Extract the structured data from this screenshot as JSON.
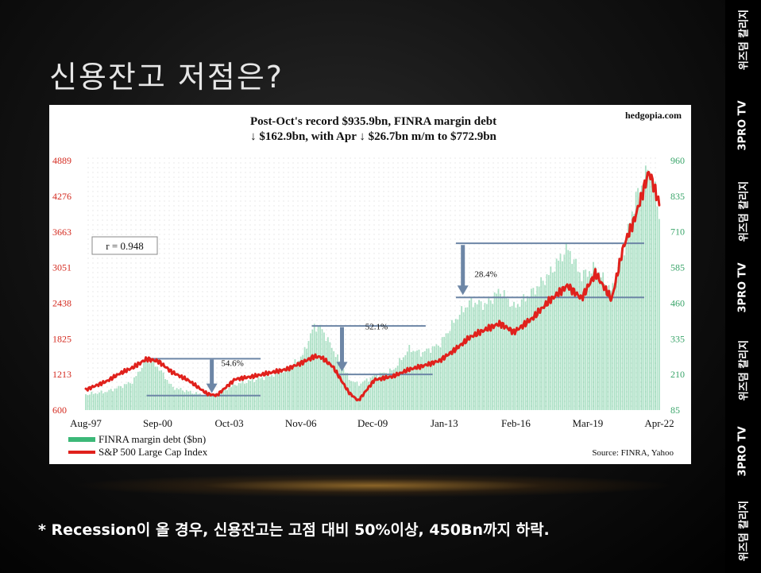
{
  "slide": {
    "title": "신용잔고 저점은?",
    "footnote": "* Recession이 올 경우, 신용잔고는 고점 대비 50%이상, 450Bn까지 하락."
  },
  "watermarks": [
    "위즈덤 칼리지",
    "3PRO TV",
    "위즈덤 칼리지",
    "3PRO TV",
    "위즈덤 칼리지",
    "3PRO TV",
    "위즈덤 칼리지"
  ],
  "chart_data": {
    "type": "line",
    "title_line1": "Post-Oct's record $935.9bn, FINRA margin debt",
    "title_line2": "↓ $162.9bn, with Apr ↓ $26.7bn m/m to $772.9bn",
    "credit": "hedgopia.com",
    "source": "Source: FINRA, Yahoo",
    "correlation_label": "r = 0.948",
    "x_ticks": [
      "Aug-97",
      "Sep-00",
      "Oct-03",
      "Nov-06",
      "Dec-09",
      "Jan-13",
      "Feb-16",
      "Mar-19",
      "Apr-22"
    ],
    "x_tick_years": [
      1997.58,
      2000.67,
      2003.75,
      2006.83,
      2009.92,
      2013.0,
      2016.08,
      2019.17,
      2022.25
    ],
    "y_left_ticks": [
      "4889",
      "4276",
      "3663",
      "3051",
      "2438",
      "1825",
      "1213",
      "600"
    ],
    "y_left_range": [
      600,
      4889
    ],
    "y_right_ticks": [
      "960",
      "835",
      "710",
      "585",
      "460",
      "335",
      "210",
      "85"
    ],
    "y_right_range": [
      85,
      960
    ],
    "legend": [
      {
        "label": "FINRA margin debt ($bn)",
        "color": "#3cb878"
      },
      {
        "label": "S&P 500 Large Cap Index",
        "color": "#e0211c"
      }
    ],
    "series": [
      {
        "name": "FINRA margin debt ($bn)",
        "axis": "right",
        "color": "#3cb878",
        "points": [
          [
            1997.58,
            140
          ],
          [
            1998.5,
            150
          ],
          [
            1999.0,
            165
          ],
          [
            1999.6,
            185
          ],
          [
            2000.2,
            265
          ],
          [
            2000.7,
            235
          ],
          [
            2001.3,
            165
          ],
          [
            2002.0,
            150
          ],
          [
            2002.8,
            135
          ],
          [
            2003.2,
            140
          ],
          [
            2004.0,
            175
          ],
          [
            2004.8,
            190
          ],
          [
            2005.5,
            205
          ],
          [
            2006.2,
            225
          ],
          [
            2006.9,
            275
          ],
          [
            2007.4,
            380
          ],
          [
            2007.7,
            375
          ],
          [
            2008.2,
            300
          ],
          [
            2008.9,
            195
          ],
          [
            2009.3,
            175
          ],
          [
            2010.0,
            205
          ],
          [
            2010.8,
            225
          ],
          [
            2011.5,
            300
          ],
          [
            2012.0,
            285
          ],
          [
            2012.8,
            315
          ],
          [
            2013.5,
            405
          ],
          [
            2014.1,
            465
          ],
          [
            2014.8,
            455
          ],
          [
            2015.4,
            505
          ],
          [
            2016.0,
            445
          ],
          [
            2016.8,
            500
          ],
          [
            2017.5,
            560
          ],
          [
            2018.3,
            655
          ],
          [
            2018.9,
            555
          ],
          [
            2019.5,
            585
          ],
          [
            2020.2,
            500
          ],
          [
            2020.7,
            640
          ],
          [
            2021.2,
            820
          ],
          [
            2021.8,
            930
          ],
          [
            2022.0,
            880
          ],
          [
            2022.25,
            773
          ]
        ]
      },
      {
        "name": "S&P 500 Large Cap Index",
        "axis": "left",
        "color": "#e0211c",
        "points": [
          [
            1997.58,
            950
          ],
          [
            1998.5,
            1100
          ],
          [
            1999.0,
            1220
          ],
          [
            1999.6,
            1330
          ],
          [
            2000.2,
            1480
          ],
          [
            2000.7,
            1440
          ],
          [
            2001.3,
            1250
          ],
          [
            2002.0,
            1110
          ],
          [
            2002.8,
            880
          ],
          [
            2003.2,
            850
          ],
          [
            2004.0,
            1130
          ],
          [
            2004.8,
            1180
          ],
          [
            2005.5,
            1240
          ],
          [
            2006.2,
            1300
          ],
          [
            2006.9,
            1420
          ],
          [
            2007.4,
            1520
          ],
          [
            2007.7,
            1510
          ],
          [
            2008.2,
            1350
          ],
          [
            2008.9,
            900
          ],
          [
            2009.3,
            760
          ],
          [
            2010.0,
            1120
          ],
          [
            2010.8,
            1180
          ],
          [
            2011.5,
            1300
          ],
          [
            2012.0,
            1350
          ],
          [
            2012.8,
            1450
          ],
          [
            2013.5,
            1650
          ],
          [
            2014.1,
            1850
          ],
          [
            2014.8,
            1990
          ],
          [
            2015.4,
            2090
          ],
          [
            2016.0,
            1940
          ],
          [
            2016.8,
            2180
          ],
          [
            2017.5,
            2470
          ],
          [
            2018.3,
            2740
          ],
          [
            2018.9,
            2520
          ],
          [
            2019.5,
            2950
          ],
          [
            2020.2,
            2500
          ],
          [
            2020.7,
            3400
          ],
          [
            2021.2,
            3900
          ],
          [
            2021.8,
            4700
          ],
          [
            2022.0,
            4480
          ],
          [
            2022.25,
            4130
          ]
        ]
      }
    ],
    "annotations": [
      {
        "text": "54.6%",
        "x": 2003.4,
        "y_right": 240
      },
      {
        "text": "52.1%",
        "x": 2009.6,
        "y_right": 368
      },
      {
        "text": "28.4%",
        "x": 2014.3,
        "y_right": 552
      }
    ]
  }
}
